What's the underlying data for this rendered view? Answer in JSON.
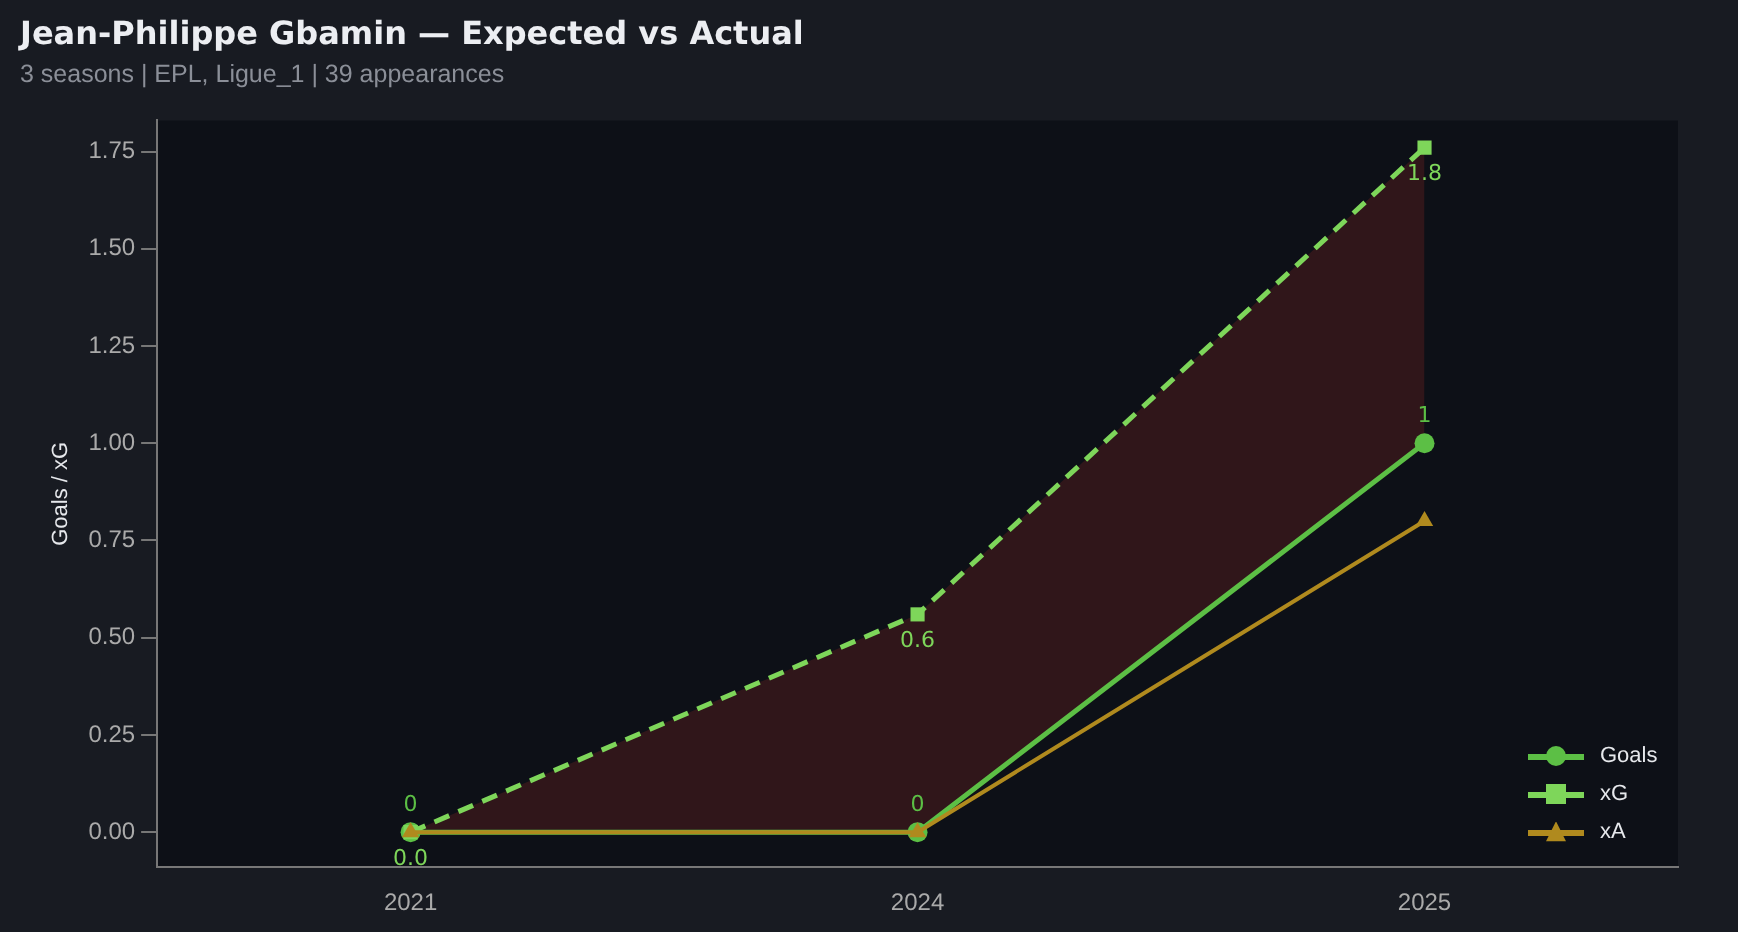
{
  "chart_data": {
    "type": "line",
    "title": "Jean-Philippe Gbamin — Expected vs Actual",
    "subtitle": "3 seasons | EPL, Ligue_1 | 39 appearances",
    "ylabel": "Goals / xG",
    "categories": [
      "2021",
      "2024",
      "2025"
    ],
    "series": [
      {
        "name": "Goals",
        "color": "#5cbf45",
        "values": [
          0,
          0,
          1
        ],
        "marker": "circle",
        "line_style": "solid",
        "value_labels": [
          "0",
          "0",
          "1"
        ]
      },
      {
        "name": "xG",
        "color": "#7ed65a",
        "values": [
          0,
          0.56,
          1.76
        ],
        "marker": "square",
        "line_style": "dashed",
        "value_labels": [
          "0.0",
          "0.6",
          "1.8"
        ],
        "lower": [
          0,
          0,
          1
        ],
        "upper": [
          0,
          0.56,
          1.76
        ]
      },
      {
        "name": "xA",
        "color": "#b08a1e",
        "values": [
          0,
          0,
          0.8
        ],
        "marker": "triangle",
        "line_style": "solid"
      }
    ],
    "ylim": [
      -0.09,
      1.83
    ],
    "yticks": [
      {
        "value": 0,
        "label": "0.00"
      },
      {
        "value": 0.25,
        "label": "0.25"
      },
      {
        "value": 0.5,
        "label": "0.50"
      },
      {
        "value": 0.75,
        "label": "0.75"
      },
      {
        "value": 1,
        "label": "1.00"
      },
      {
        "value": 1.25,
        "label": "1.25"
      },
      {
        "value": 1.5,
        "label": "1.50"
      },
      {
        "value": 1.75,
        "label": "1.75"
      }
    ],
    "grid": false,
    "legend": "bottom right"
  }
}
